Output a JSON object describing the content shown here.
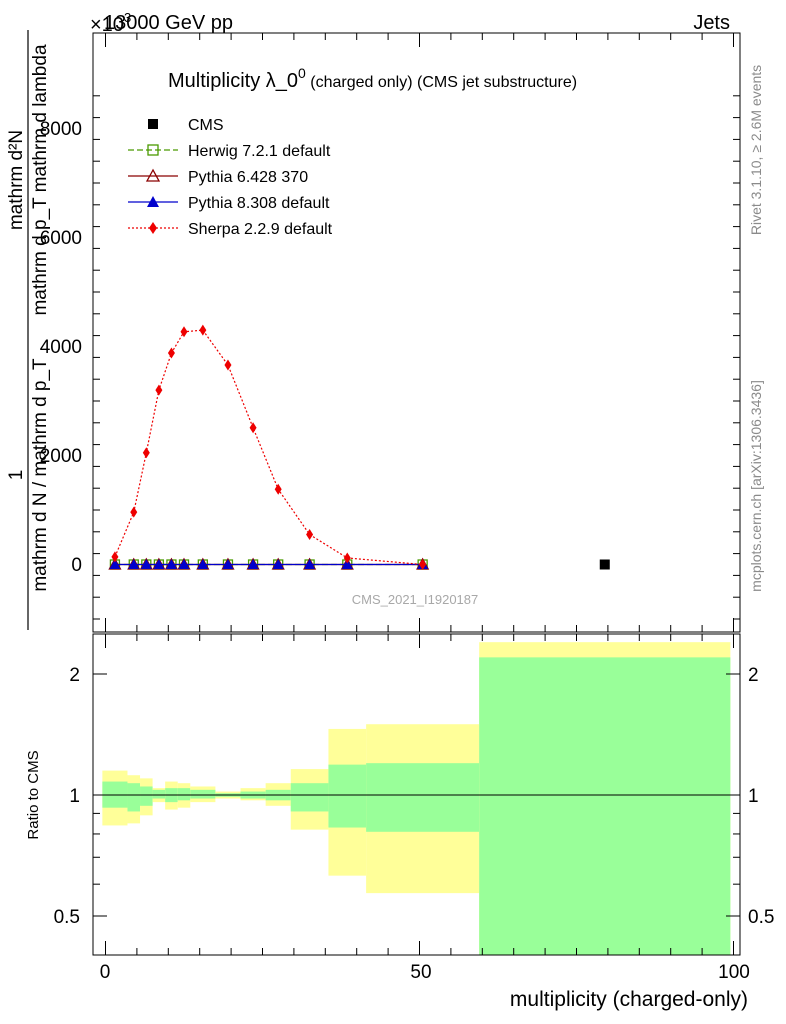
{
  "header": {
    "energy_label": "13000 GeV pp",
    "process_label": "Jets",
    "exponent_label": "×10",
    "exponent_power": "3"
  },
  "side_labels": {
    "rivet": "Rivet 3.1.10, ≥ 2.6M events",
    "mcplots": "mcplots.cern.ch [arXiv:1306.3436]"
  },
  "main_plot": {
    "title_main": "Multiplicity λ_0",
    "title_sup": "0",
    "title_rest": " (charged only) (CMS jet substructure)",
    "ylabel_num_left": "1",
    "ylabel_num_right": "mathrm d²N",
    "ylabel_den_left": "mathrm d N / mathrm d p_T",
    "ylabel_den_right": "mathrm d p_T mathrm d lambda",
    "watermark": "CMS_2021_I1920187",
    "ytick_labels": [
      "0",
      "2000",
      "4000",
      "6000",
      "8000"
    ]
  },
  "ratio_plot": {
    "ylabel": "Ratio to CMS",
    "ytick_labels": [
      "0.5",
      "1",
      "2"
    ],
    "xlabel": "multiplicity (charged-only)",
    "xtick_labels": [
      "0",
      "50",
      "100"
    ]
  },
  "legend": {
    "entries": [
      {
        "label": "CMS",
        "color": "#000000",
        "marker": "square-filled",
        "dash": "none"
      },
      {
        "label": "Herwig 7.2.1 default",
        "color": "#4a9a00",
        "marker": "square-open",
        "dash": "6,3"
      },
      {
        "label": "Pythia 6.428 370",
        "color": "#8b0000",
        "marker": "triangle-open",
        "dash": "none"
      },
      {
        "label": "Pythia 8.308 default",
        "color": "#0000cc",
        "marker": "triangle-filled",
        "dash": "none"
      },
      {
        "label": "Sherpa 2.2.9 default",
        "color": "#ee0000",
        "marker": "diamond-filled",
        "dash": "2,2"
      }
    ]
  },
  "chart_data": {
    "type": "line",
    "xlabel": "multiplicity (charged-only)",
    "ylabel": "1/(mathrm d N / mathrm d p_T) mathrm d²N / (mathrm d p_T mathrm d lambda)",
    "xlim": [
      -2,
      100
    ],
    "ylim": [
      -1200,
      8800
    ],
    "y_scale_factor": 1000,
    "x": [
      1.5,
      4.5,
      6.5,
      8.5,
      10.5,
      12.5,
      15.5,
      19.5,
      23.5,
      27.5,
      32.5,
      38.5,
      50.5
    ],
    "cms_point": {
      "x": 79.5,
      "y": 0
    },
    "series": [
      {
        "name": "Herwig 7.2.1 default",
        "values": [
          0,
          0,
          0,
          0,
          0,
          0,
          0,
          0,
          0,
          0,
          0,
          0,
          0
        ]
      },
      {
        "name": "Pythia 6.428 370",
        "values": [
          0,
          0,
          0,
          0,
          0,
          0,
          0,
          0,
          0,
          0,
          0,
          0,
          0
        ]
      },
      {
        "name": "Pythia 8.308 default",
        "values": [
          0,
          0,
          0,
          0,
          0,
          0,
          0,
          0,
          0,
          0,
          0,
          0,
          0
        ]
      },
      {
        "name": "Sherpa 2.2.9 default",
        "values": [
          140,
          960,
          2050,
          3200,
          3880,
          4270,
          4300,
          3660,
          2510,
          1380,
          550,
          120,
          0
        ]
      }
    ],
    "ratio": {
      "ylim_log": [
        0.4,
        2.4
      ],
      "ref": 1,
      "bins": [
        {
          "x0": -0.5,
          "x1": 3.5,
          "inner": [
            0.93,
            1.08
          ],
          "outer": [
            0.84,
            1.15
          ]
        },
        {
          "x0": 3.5,
          "x1": 5.5,
          "inner": [
            0.91,
            1.07
          ],
          "outer": [
            0.85,
            1.12
          ]
        },
        {
          "x0": 5.5,
          "x1": 7.5,
          "inner": [
            0.94,
            1.05
          ],
          "outer": [
            0.89,
            1.1
          ]
        },
        {
          "x0": 7.5,
          "x1": 9.5,
          "inner": [
            0.98,
            1.03
          ],
          "outer": [
            0.96,
            1.04
          ]
        },
        {
          "x0": 9.5,
          "x1": 11.5,
          "inner": [
            0.96,
            1.04
          ],
          "outer": [
            0.92,
            1.08
          ]
        },
        {
          "x0": 11.5,
          "x1": 13.5,
          "inner": [
            0.97,
            1.04
          ],
          "outer": [
            0.93,
            1.07
          ]
        },
        {
          "x0": 13.5,
          "x1": 17.5,
          "inner": [
            0.98,
            1.03
          ],
          "outer": [
            0.96,
            1.05
          ]
        },
        {
          "x0": 17.5,
          "x1": 21.5,
          "inner": [
            0.99,
            1.01
          ],
          "outer": [
            0.98,
            1.02
          ]
        },
        {
          "x0": 21.5,
          "x1": 25.5,
          "inner": [
            0.98,
            1.02
          ],
          "outer": [
            0.97,
            1.04
          ]
        },
        {
          "x0": 25.5,
          "x1": 29.5,
          "inner": [
            0.97,
            1.03
          ],
          "outer": [
            0.94,
            1.07
          ]
        },
        {
          "x0": 29.5,
          "x1": 35.5,
          "inner": [
            0.91,
            1.07
          ],
          "outer": [
            0.82,
            1.16
          ]
        },
        {
          "x0": 35.5,
          "x1": 41.5,
          "inner": [
            0.83,
            1.19
          ],
          "outer": [
            0.63,
            1.46
          ]
        },
        {
          "x0": 41.5,
          "x1": 59.5,
          "inner": [
            0.81,
            1.2
          ],
          "outer": [
            0.57,
            1.5
          ]
        },
        {
          "x0": 59.5,
          "x1": 99.5,
          "inner": [
            0.38,
            2.2
          ],
          "outer": [
            0.38,
            2.4
          ]
        }
      ]
    }
  }
}
